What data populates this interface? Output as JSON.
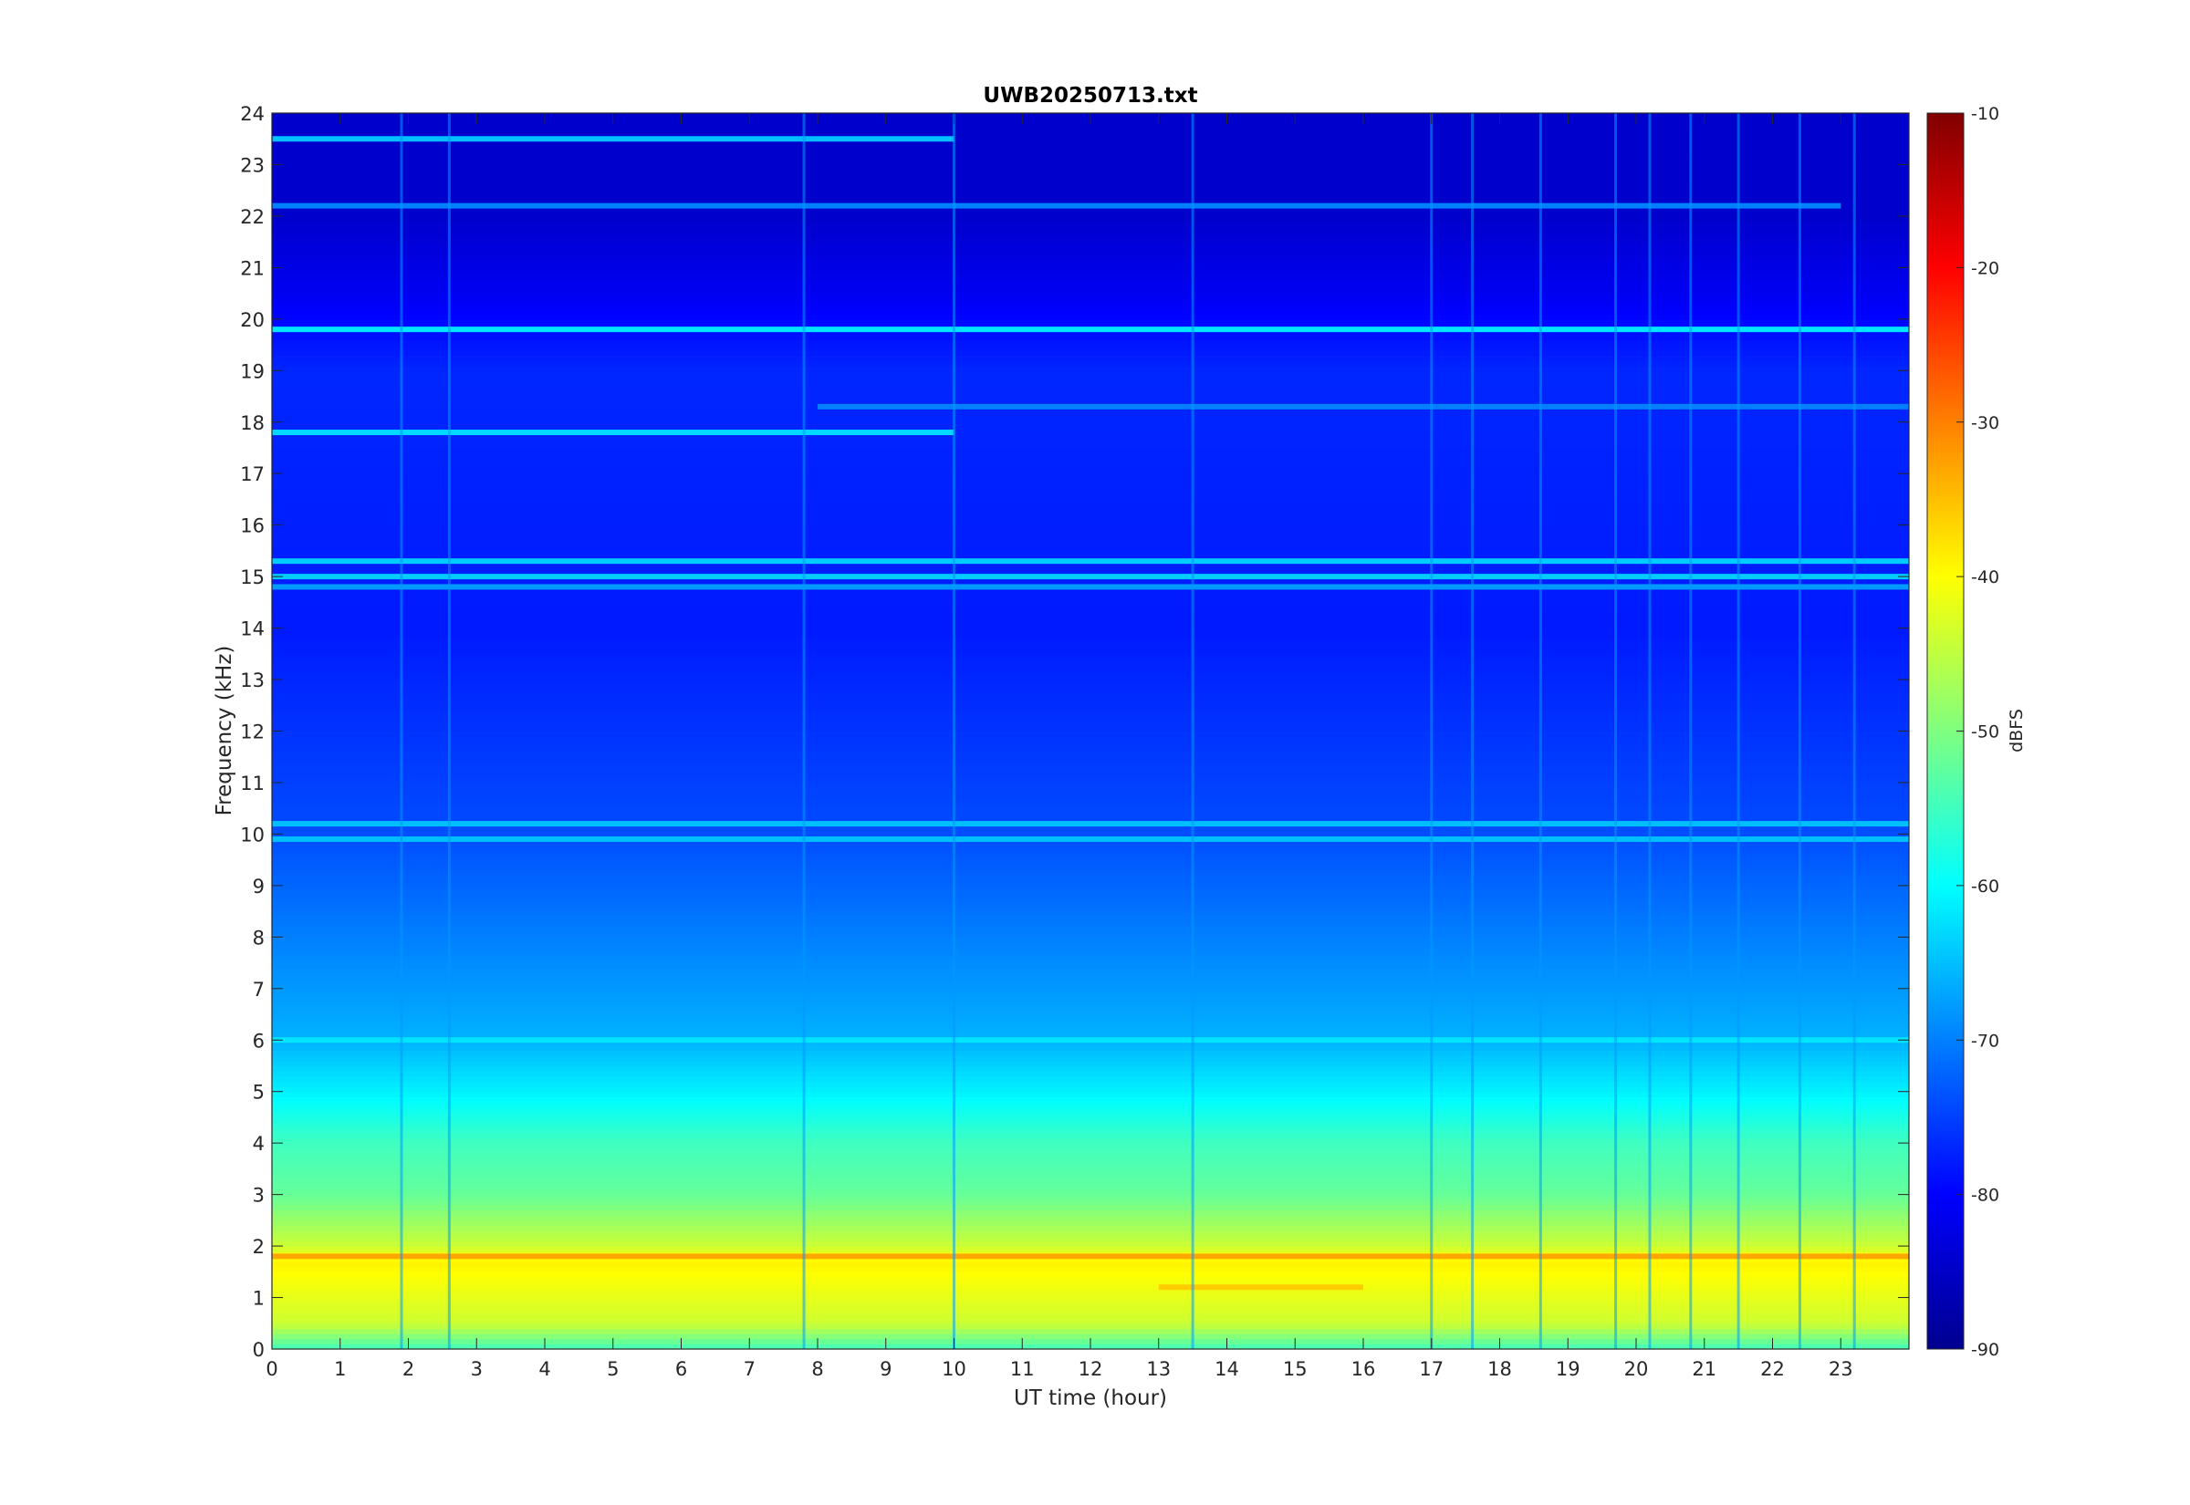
{
  "chart_data": {
    "type": "heatmap",
    "title": "UWB20250713.txt",
    "xlabel": "UT time (hour)",
    "ylabel": "Frequency (kHz)",
    "xlim": [
      0,
      24
    ],
    "ylim": [
      0,
      24
    ],
    "x_ticks": [
      "0",
      "1",
      "2",
      "3",
      "4",
      "5",
      "6",
      "7",
      "8",
      "9",
      "10",
      "11",
      "12",
      "13",
      "14",
      "15",
      "16",
      "17",
      "18",
      "19",
      "20",
      "21",
      "22",
      "23"
    ],
    "y_ticks": [
      "0",
      "1",
      "2",
      "3",
      "4",
      "5",
      "6",
      "7",
      "8",
      "9",
      "10",
      "11",
      "12",
      "13",
      "14",
      "15",
      "16",
      "17",
      "18",
      "19",
      "20",
      "21",
      "22",
      "23",
      "24"
    ],
    "colorbar": {
      "label": "dBFS",
      "range": [
        -90,
        -10
      ],
      "ticks": [
        "-10",
        "-20",
        "-30",
        "-40",
        "-50",
        "-60",
        "-70",
        "-80",
        "-90"
      ],
      "colormap": "jet"
    },
    "background_level_profile": [
      {
        "freq_khz": 0.0,
        "dbfs": -55
      },
      {
        "freq_khz": 0.5,
        "dbfs": -44
      },
      {
        "freq_khz": 1.0,
        "dbfs": -42
      },
      {
        "freq_khz": 1.7,
        "dbfs": -39
      },
      {
        "freq_khz": 2.0,
        "dbfs": -44
      },
      {
        "freq_khz": 3.0,
        "dbfs": -52
      },
      {
        "freq_khz": 4.0,
        "dbfs": -55
      },
      {
        "freq_khz": 5.0,
        "dbfs": -61
      },
      {
        "freq_khz": 6.0,
        "dbfs": -66
      },
      {
        "freq_khz": 8.0,
        "dbfs": -70
      },
      {
        "freq_khz": 10.0,
        "dbfs": -74
      },
      {
        "freq_khz": 14.0,
        "dbfs": -78
      },
      {
        "freq_khz": 19.0,
        "dbfs": -77
      },
      {
        "freq_khz": 20.5,
        "dbfs": -81
      },
      {
        "freq_khz": 22.0,
        "dbfs": -84
      },
      {
        "freq_khz": 24.0,
        "dbfs": -84
      }
    ],
    "horizontal_lines": [
      {
        "freq_khz": 19.8,
        "dbfs": -62,
        "from_hour": 0,
        "to_hour": 24
      },
      {
        "freq_khz": 17.8,
        "dbfs": -63,
        "from_hour": 0,
        "to_hour": 10
      },
      {
        "freq_khz": 23.5,
        "dbfs": -65,
        "from_hour": 0,
        "to_hour": 10
      },
      {
        "freq_khz": 22.2,
        "dbfs": -70,
        "from_hour": 0,
        "to_hour": 23
      },
      {
        "freq_khz": 18.3,
        "dbfs": -70,
        "from_hour": 8,
        "to_hour": 24
      },
      {
        "freq_khz": 15.3,
        "dbfs": -64,
        "from_hour": 0,
        "to_hour": 24
      },
      {
        "freq_khz": 15.0,
        "dbfs": -64,
        "from_hour": 0,
        "to_hour": 24
      },
      {
        "freq_khz": 14.8,
        "dbfs": -68,
        "from_hour": 0,
        "to_hour": 24
      },
      {
        "freq_khz": 10.2,
        "dbfs": -65,
        "from_hour": 0,
        "to_hour": 24
      },
      {
        "freq_khz": 9.9,
        "dbfs": -65,
        "from_hour": 0,
        "to_hour": 24
      },
      {
        "freq_khz": 6.0,
        "dbfs": -62,
        "from_hour": 0,
        "to_hour": 24
      },
      {
        "freq_khz": 1.8,
        "dbfs": -33,
        "from_hour": 0,
        "to_hour": 24
      },
      {
        "freq_khz": 1.2,
        "dbfs": -36,
        "from_hour": 13,
        "to_hour": 16
      }
    ],
    "vertical_streaks_hour": [
      1.9,
      2.6,
      7.8,
      10.0,
      13.5,
      17.0,
      17.6,
      18.6,
      19.7,
      20.2,
      20.8,
      21.5,
      22.4,
      23.2
    ]
  }
}
